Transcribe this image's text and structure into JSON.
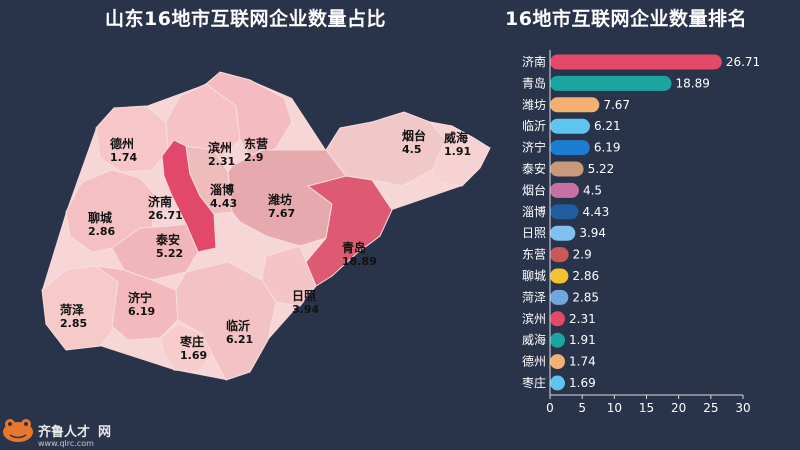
{
  "titles": {
    "map": "山东16地市互联网企业数量占比",
    "bar": "16地市互联网企业数量排名"
  },
  "logo": {
    "brand": "齐鲁人才",
    "brand_suffix": "网",
    "url": "www.qlrc.com"
  },
  "chart_data": [
    {
      "type": "bar",
      "orientation": "horizontal",
      "title": "16地市互联网企业数量排名",
      "categories": [
        "济南",
        "青岛",
        "潍坊",
        "临沂",
        "济宁",
        "泰安",
        "烟台",
        "淄博",
        "日照",
        "东营",
        "聊城",
        "菏泽",
        "滨州",
        "威海",
        "德州",
        "枣庄"
      ],
      "values": [
        26.71,
        18.89,
        7.67,
        6.21,
        6.19,
        5.22,
        4.5,
        4.43,
        3.94,
        2.9,
        2.86,
        2.85,
        2.31,
        1.91,
        1.74,
        1.69
      ],
      "value_labels": [
        "26.71",
        "18.89",
        "7.67",
        "6.21",
        "6.19",
        "5.22",
        "4.5",
        "4.43",
        "3.94",
        "2.9",
        "2.86",
        "2.85",
        "2.31",
        "1.91",
        "1.74",
        "1.69"
      ],
      "colors": [
        "#e34a6a",
        "#1aa5a0",
        "#f4b073",
        "#5ec4f0",
        "#1e7dd2",
        "#c99a7a",
        "#c86fa3",
        "#1f5d9e",
        "#7fc0ef",
        "#c8595a",
        "#f1c232",
        "#6fa8dc",
        "#e34a6a",
        "#1aa5a0",
        "#f4b073",
        "#5ec4f0"
      ],
      "xlim": [
        0,
        30
      ],
      "xticks": [
        0,
        5,
        10,
        15,
        20,
        25,
        30
      ],
      "grid": false
    },
    {
      "type": "map",
      "title": "山东16地市互联网企业数量占比",
      "regions": [
        {
          "name": "德州",
          "value": 1.74,
          "value_label": "1.74",
          "fill": "#f7c6c9"
        },
        {
          "name": "滨州",
          "value": 2.31,
          "value_label": "2.31",
          "fill": "#f6c2c6"
        },
        {
          "name": "东营",
          "value": 2.9,
          "value_label": "2.9",
          "fill": "#f4bcc0"
        },
        {
          "name": "烟台",
          "value": 4.5,
          "value_label": "4.5",
          "fill": "#f0c8c8"
        },
        {
          "name": "威海",
          "value": 1.91,
          "value_label": "1.91",
          "fill": "#f7d2d2"
        },
        {
          "name": "济南",
          "value": 26.71,
          "value_label": "26.71",
          "fill": "#e2486a"
        },
        {
          "name": "淄博",
          "value": 4.43,
          "value_label": "4.43",
          "fill": "#efbcbc"
        },
        {
          "name": "潍坊",
          "value": 7.67,
          "value_label": "7.67",
          "fill": "#e6aaae"
        },
        {
          "name": "聊城",
          "value": 2.86,
          "value_label": "2.86",
          "fill": "#f5c0c4"
        },
        {
          "name": "泰安",
          "value": 5.22,
          "value_label": "5.22",
          "fill": "#f0b6ba"
        },
        {
          "name": "青岛",
          "value": 18.89,
          "value_label": "18.89",
          "fill": "#dd5a72"
        },
        {
          "name": "菏泽",
          "value": 2.85,
          "value_label": "2.85",
          "fill": "#f7caca"
        },
        {
          "name": "济宁",
          "value": 6.19,
          "value_label": "6.19",
          "fill": "#f3b9bd"
        },
        {
          "name": "日照",
          "value": 3.94,
          "value_label": "3.94",
          "fill": "#f4c4c6"
        },
        {
          "name": "枣庄",
          "value": 1.69,
          "value_label": "1.69",
          "fill": "#f7cccc"
        },
        {
          "name": "临沂",
          "value": 6.21,
          "value_label": "6.21",
          "fill": "#f3c2c4"
        }
      ]
    }
  ]
}
